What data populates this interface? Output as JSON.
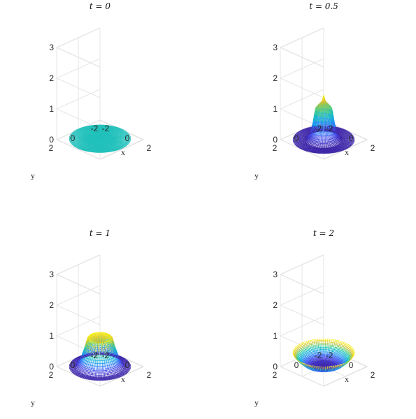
{
  "chart_data": [
    {
      "type": "surface",
      "title": "t = 0",
      "t": 0,
      "xlabel": "x",
      "ylabel": "y",
      "xticks": [
        "-2",
        "0",
        "2"
      ],
      "yticks": [
        "-2",
        "0",
        "2"
      ],
      "zticks": [
        "0",
        "1",
        "2",
        "3"
      ],
      "xlim": [
        -2,
        2
      ],
      "ylim": [
        -2,
        2
      ],
      "zlim": [
        0,
        3
      ],
      "grid": true,
      "domain": "disk of radius 2",
      "radial_profile": {
        "r": [
          0,
          0.5,
          1,
          1.5,
          2
        ],
        "z": [
          0.03,
          0.03,
          0.03,
          0.03,
          0.03
        ]
      },
      "colormap": "parula"
    },
    {
      "type": "surface",
      "title": "t = 0.5",
      "t": 0.5,
      "xlabel": "x",
      "ylabel": "y",
      "xticks": [
        "-2",
        "0",
        "2"
      ],
      "yticks": [
        "-2",
        "0",
        "2"
      ],
      "zticks": [
        "0",
        "1",
        "2",
        "3"
      ],
      "xlim": [
        -2,
        2
      ],
      "ylim": [
        -2,
        2
      ],
      "zlim": [
        0,
        3
      ],
      "grid": true,
      "domain": "disk of radius 2",
      "radial_profile": {
        "r": [
          0,
          0.1,
          0.3,
          0.55,
          0.7,
          0.9,
          1.2,
          2
        ],
        "z": [
          1.45,
          1.25,
          1.15,
          1.0,
          0.55,
          0.15,
          0.0,
          0.0
        ]
      },
      "colormap": "parula"
    },
    {
      "type": "surface",
      "title": "t = 1",
      "t": 1,
      "xlabel": "x",
      "ylabel": "y",
      "xticks": [
        "-2",
        "0",
        "2"
      ],
      "yticks": [
        "-2",
        "0",
        "2"
      ],
      "zticks": [
        "0",
        "1",
        "2",
        "3"
      ],
      "xlim": [
        -2,
        2
      ],
      "ylim": [
        -2,
        2
      ],
      "zlim": [
        0,
        3
      ],
      "grid": true,
      "domain": "disk of radius 2",
      "radial_profile": {
        "r": [
          0,
          0.4,
          0.8,
          1.0,
          1.3,
          1.6,
          2
        ],
        "z": [
          0.8,
          0.85,
          0.95,
          0.6,
          0.2,
          0.02,
          0.0
        ]
      },
      "colormap": "parula"
    },
    {
      "type": "surface",
      "title": "t = 2",
      "t": 2,
      "xlabel": "x",
      "ylabel": "y",
      "xticks": [
        "-2",
        "0",
        "2"
      ],
      "yticks": [
        "-2",
        "0",
        "2"
      ],
      "zticks": [
        "0",
        "1",
        "2",
        "3"
      ],
      "xlim": [
        -2,
        2
      ],
      "ylim": [
        -2,
        2
      ],
      "zlim": [
        0,
        3
      ],
      "grid": true,
      "domain": "disk of radius 2",
      "radial_profile": {
        "r": [
          0,
          0.8,
          1.3,
          1.7,
          2
        ],
        "z": [
          0.0,
          0.03,
          0.12,
          0.28,
          0.45
        ]
      },
      "colormap": "parula"
    }
  ]
}
